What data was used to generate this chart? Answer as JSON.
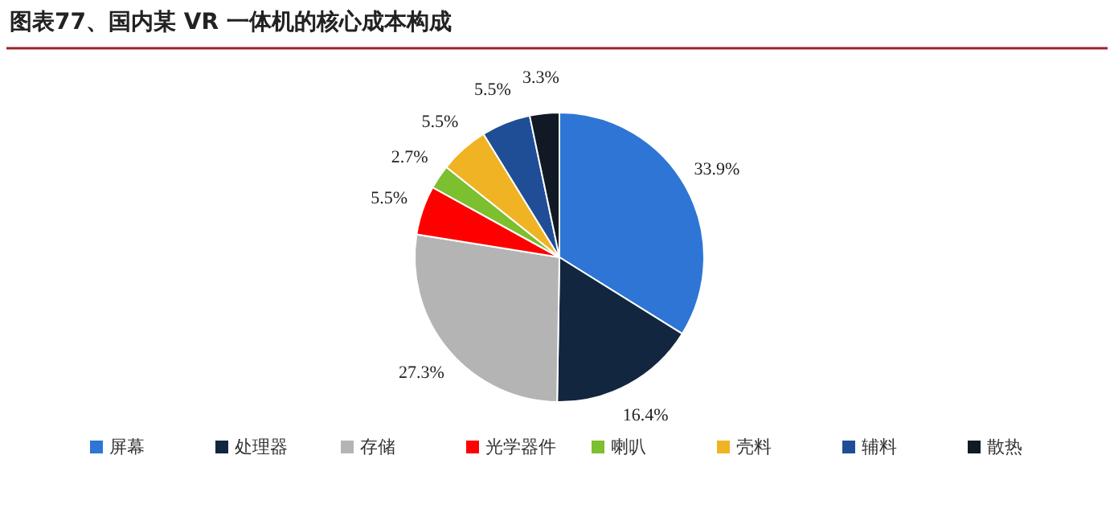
{
  "chart_data": {
    "type": "pie",
    "title": "图表77、国内某 VR 一体机的核心成本构成",
    "categories": [
      "屏幕",
      "处理器",
      "存储",
      "光学器件",
      "喇叭",
      "壳料",
      "辅料",
      "散热"
    ],
    "values": [
      33.9,
      16.4,
      27.3,
      5.5,
      2.7,
      5.5,
      5.5,
      3.3
    ],
    "value_labels": [
      "33.9%",
      "16.4%",
      "27.3%",
      "5.5%",
      "2.7%",
      "5.5%",
      "5.5%",
      "3.3%"
    ],
    "colors": [
      "#2e75d6",
      "#13263f",
      "#b4b4b4",
      "#ff0000",
      "#7cbf2f",
      "#f0b323",
      "#1f4e96",
      "#111a24"
    ],
    "legend": "bottom"
  }
}
